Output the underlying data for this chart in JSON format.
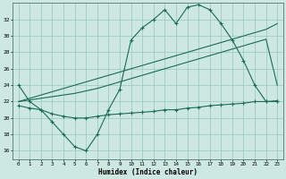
{
  "xlabel": "Humidex (Indice chaleur)",
  "bg_color": "#cce8e0",
  "grid_color": "#99c8bc",
  "line_color": "#1a6b5a",
  "ylim": [
    15,
    34
  ],
  "xlim": [
    -0.5,
    23.5
  ],
  "yticks": [
    16,
    18,
    20,
    22,
    24,
    26,
    28,
    30,
    32
  ],
  "xticks": [
    0,
    1,
    2,
    3,
    4,
    5,
    6,
    7,
    8,
    9,
    10,
    11,
    12,
    13,
    14,
    15,
    16,
    17,
    18,
    19,
    20,
    21,
    22,
    23
  ],
  "line1_x": [
    0,
    1,
    2,
    3,
    4,
    5,
    6,
    7,
    8,
    9,
    10,
    11,
    12,
    13,
    14,
    15,
    16,
    17,
    18,
    19,
    20,
    21,
    22,
    23
  ],
  "line1_y": [
    24,
    22,
    21,
    19.5,
    18,
    16.5,
    16,
    18,
    21,
    23.5,
    29.5,
    31,
    32,
    33.2,
    31.5,
    33.5,
    33.8,
    33.2,
    31.5,
    29.5,
    27,
    24,
    22,
    22
  ],
  "line2_x": [
    0,
    1,
    2,
    3,
    4,
    5,
    6,
    7,
    8,
    9,
    10,
    11,
    12,
    13,
    14,
    15,
    16,
    17,
    18,
    19,
    20,
    21,
    22,
    23
  ],
  "line2_y": [
    21.5,
    21.2,
    21.0,
    20.5,
    20.2,
    20.0,
    20.0,
    20.2,
    20.4,
    20.5,
    20.6,
    20.7,
    20.8,
    21.0,
    21.0,
    21.2,
    21.3,
    21.5,
    21.6,
    21.7,
    21.8,
    22.0,
    22.0,
    22.1
  ],
  "line3_x": [
    0,
    1,
    2,
    3,
    4,
    5,
    6,
    7,
    8,
    9,
    10,
    11,
    12,
    13,
    14,
    15,
    16,
    17,
    18,
    19,
    20,
    21,
    22,
    23
  ],
  "line3_y": [
    22.0,
    22.4,
    22.8,
    23.2,
    23.6,
    24.0,
    24.4,
    24.8,
    25.2,
    25.6,
    26.0,
    26.4,
    26.8,
    27.2,
    27.6,
    28.0,
    28.4,
    28.8,
    29.2,
    29.6,
    30.0,
    30.4,
    30.8,
    31.5
  ],
  "line4_x": [
    0,
    1,
    2,
    3,
    4,
    5,
    6,
    7,
    8,
    9,
    10,
    11,
    12,
    13,
    14,
    15,
    16,
    17,
    18,
    19,
    20,
    21,
    22,
    23
  ],
  "line4_y": [
    22.0,
    22.2,
    22.4,
    22.6,
    22.8,
    23.0,
    23.3,
    23.6,
    24.0,
    24.4,
    24.8,
    25.2,
    25.6,
    26.0,
    26.4,
    26.8,
    27.2,
    27.6,
    28.0,
    28.4,
    28.8,
    29.2,
    29.6,
    24.0
  ]
}
